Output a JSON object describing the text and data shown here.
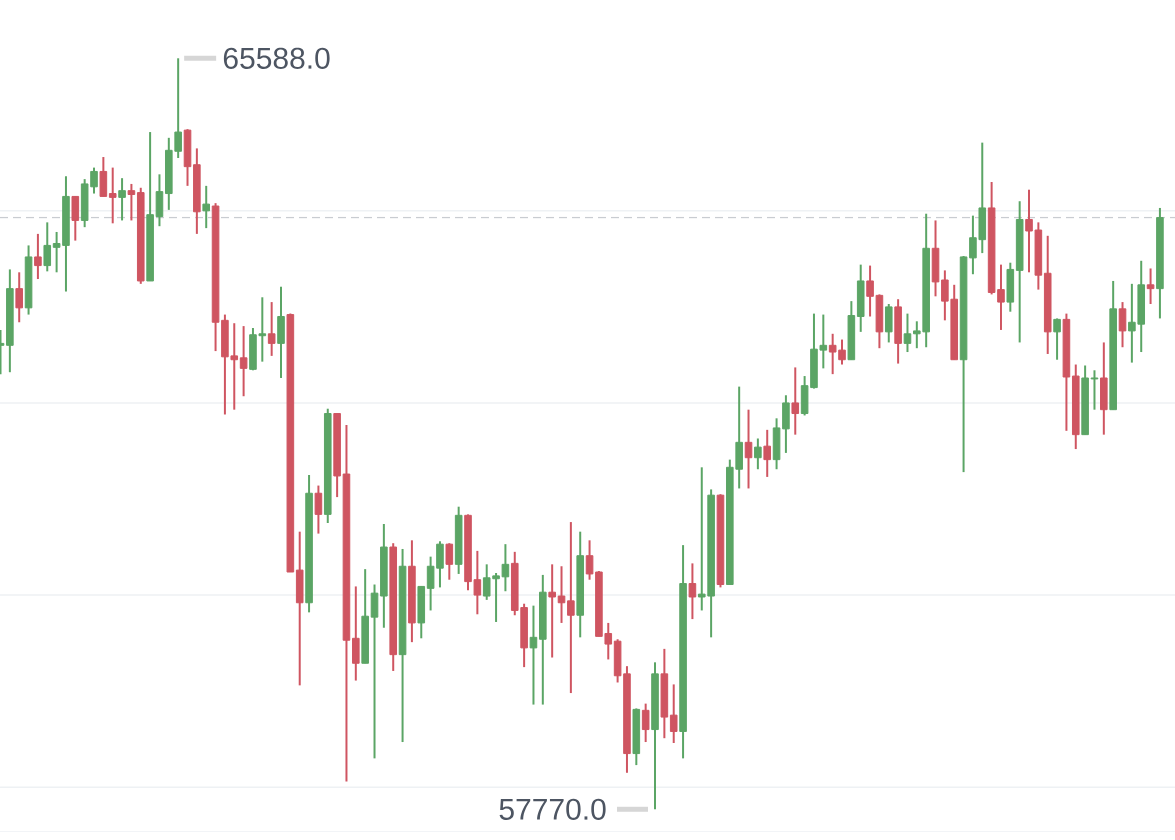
{
  "chart_data": {
    "type": "candlestick",
    "categories": [
      null,
      null,
      null,
      null,
      null,
      null,
      null,
      null,
      null,
      null,
      null,
      null,
      null,
      null,
      null,
      null,
      null,
      null,
      null,
      null,
      null,
      null,
      null,
      null,
      null,
      null,
      null,
      null,
      null,
      null,
      null,
      null,
      null,
      null,
      null,
      null,
      null,
      null,
      null,
      null,
      null,
      null,
      null,
      null,
      null,
      null,
      null,
      null,
      null,
      null,
      null,
      null,
      null,
      null,
      null,
      null,
      null,
      null,
      null,
      null,
      null,
      null,
      null,
      null,
      null,
      null,
      null,
      null,
      null,
      null,
      null,
      null,
      null,
      null,
      null,
      null,
      null,
      null,
      null,
      null,
      null,
      null,
      null,
      null,
      null,
      null,
      null,
      null,
      null,
      null,
      null,
      null,
      null,
      null,
      null,
      null,
      null,
      null,
      null,
      null,
      null,
      null,
      null,
      null,
      null,
      null,
      null,
      null,
      null,
      null,
      null,
      null,
      null,
      null,
      null,
      null,
      null,
      null,
      null,
      null,
      null,
      null,
      null,
      null,
      null
    ],
    "ohlc": [
      [
        62600,
        62760,
        62300,
        62620
      ],
      [
        62600,
        63390,
        62320,
        63190
      ],
      [
        63190,
        63360,
        62840,
        62990
      ],
      [
        62990,
        63640,
        62920,
        63520
      ],
      [
        63520,
        63760,
        63290,
        63430
      ],
      [
        63430,
        63880,
        63370,
        63640
      ],
      [
        63620,
        63780,
        63360,
        63660
      ],
      [
        63640,
        64360,
        63160,
        64150
      ],
      [
        64150,
        64150,
        63690,
        63900
      ],
      [
        63900,
        64330,
        63830,
        64280
      ],
      [
        64250,
        64450,
        64180,
        64410
      ],
      [
        64410,
        64560,
        64150,
        64150
      ],
      [
        64180,
        64450,
        63870,
        64140
      ],
      [
        64140,
        64340,
        63900,
        64210
      ],
      [
        64210,
        64280,
        63900,
        64170
      ],
      [
        64190,
        64240,
        63240,
        63270
      ],
      [
        63270,
        64820,
        63270,
        63960
      ],
      [
        63940,
        64380,
        63840,
        64200
      ],
      [
        64180,
        64760,
        64010,
        64630
      ],
      [
        64620,
        65588,
        64550,
        64820
      ],
      [
        64840,
        64850,
        64260,
        64460
      ],
      [
        64480,
        64650,
        63760,
        63990
      ],
      [
        64000,
        64260,
        63820,
        64070
      ],
      [
        64050,
        64080,
        62540,
        62840
      ],
      [
        62860,
        62920,
        61880,
        62480
      ],
      [
        62490,
        62830,
        61930,
        62450
      ],
      [
        62470,
        62800,
        62070,
        62360
      ],
      [
        62350,
        62780,
        62340,
        62710
      ],
      [
        62700,
        63100,
        62430,
        62720
      ],
      [
        62720,
        63050,
        62490,
        62620
      ],
      [
        62620,
        63210,
        62260,
        62900
      ],
      [
        62920,
        62930,
        60240,
        60240
      ],
      [
        60260,
        60660,
        59060,
        59920
      ],
      [
        59920,
        61250,
        59820,
        61060
      ],
      [
        61060,
        61140,
        60640,
        60840
      ],
      [
        60840,
        61940,
        60750,
        61890
      ],
      [
        61890,
        61890,
        61020,
        61240
      ],
      [
        61260,
        61770,
        58060,
        59530
      ],
      [
        59550,
        60090,
        59110,
        59290
      ],
      [
        59290,
        60270,
        59290,
        59780
      ],
      [
        59770,
        60110,
        58300,
        60020
      ],
      [
        59990,
        60740,
        59660,
        60500
      ],
      [
        60500,
        60540,
        59210,
        59380
      ],
      [
        59380,
        60480,
        58470,
        60300
      ],
      [
        60300,
        60570,
        59510,
        59710
      ],
      [
        59710,
        60090,
        59550,
        60090
      ],
      [
        60070,
        60400,
        59840,
        60300
      ],
      [
        60280,
        60560,
        60080,
        60530
      ],
      [
        60530,
        60540,
        60160,
        60320
      ],
      [
        60320,
        60920,
        60220,
        60830
      ],
      [
        60830,
        60840,
        60050,
        60140
      ],
      [
        60160,
        60460,
        59800,
        60000
      ],
      [
        59990,
        60320,
        59950,
        60180
      ],
      [
        60170,
        60230,
        59720,
        60200
      ],
      [
        60190,
        60530,
        60040,
        60320
      ],
      [
        60330,
        60450,
        59790,
        59840
      ],
      [
        59870,
        59910,
        59250,
        59450
      ],
      [
        59450,
        59890,
        58860,
        59560
      ],
      [
        59540,
        60210,
        58860,
        60030
      ],
      [
        60030,
        60320,
        59350,
        59980
      ],
      [
        59990,
        60300,
        59710,
        59920
      ],
      [
        59940,
        60760,
        58980,
        59790
      ],
      [
        59790,
        60660,
        59560,
        60410
      ],
      [
        60410,
        60570,
        60160,
        60220
      ],
      [
        60240,
        60250,
        59570,
        59570
      ],
      [
        59600,
        59710,
        59330,
        59490
      ],
      [
        59520,
        59540,
        59090,
        59160
      ],
      [
        59180,
        59260,
        58150,
        58350
      ],
      [
        58350,
        58820,
        58230,
        58810
      ],
      [
        58800,
        58870,
        58470,
        58600
      ],
      [
        58600,
        59300,
        57770,
        59180
      ],
      [
        59180,
        59440,
        58510,
        58730
      ],
      [
        58750,
        59070,
        58460,
        58580
      ],
      [
        58580,
        60520,
        58300,
        60120
      ],
      [
        60120,
        60330,
        59750,
        59980
      ],
      [
        59980,
        61330,
        59840,
        60010
      ],
      [
        59990,
        61100,
        59560,
        61040
      ],
      [
        61040,
        61050,
        60080,
        60110
      ],
      [
        60110,
        61410,
        60110,
        61330
      ],
      [
        61310,
        62170,
        61110,
        61590
      ],
      [
        61590,
        61930,
        61110,
        61430
      ],
      [
        61430,
        61630,
        61310,
        61540
      ],
      [
        61550,
        61720,
        61230,
        61410
      ],
      [
        61410,
        61840,
        61310,
        61740
      ],
      [
        61730,
        62080,
        61480,
        62000
      ],
      [
        62000,
        62370,
        61670,
        61890
      ],
      [
        61890,
        62280,
        61870,
        62180
      ],
      [
        62160,
        62930,
        62150,
        62560
      ],
      [
        62550,
        62920,
        62360,
        62600
      ],
      [
        62600,
        62720,
        62300,
        62530
      ],
      [
        62550,
        62660,
        62400,
        62450
      ],
      [
        62450,
        63060,
        62450,
        62910
      ],
      [
        62900,
        63440,
        62740,
        63270
      ],
      [
        63270,
        63430,
        62900,
        63110
      ],
      [
        63120,
        63130,
        62570,
        62740
      ],
      [
        62740,
        63030,
        62630,
        63000
      ],
      [
        63000,
        63080,
        62410,
        62620
      ],
      [
        62620,
        62930,
        62530,
        62720
      ],
      [
        62720,
        62850,
        62570,
        62750
      ],
      [
        62740,
        63970,
        62580,
        63610
      ],
      [
        63610,
        63900,
        63110,
        63260
      ],
      [
        63280,
        63380,
        62860,
        63060
      ],
      [
        63080,
        63230,
        62450,
        62450
      ],
      [
        62450,
        63530,
        61280,
        63520
      ],
      [
        63510,
        63950,
        63340,
        63720
      ],
      [
        63700,
        64710,
        63560,
        64030
      ],
      [
        64030,
        64300,
        63130,
        63150
      ],
      [
        63180,
        63440,
        62760,
        63050
      ],
      [
        63050,
        63460,
        62950,
        63390
      ],
      [
        63380,
        64100,
        62630,
        63910
      ],
      [
        63910,
        64220,
        63360,
        63790
      ],
      [
        63800,
        63880,
        63180,
        63330
      ],
      [
        63350,
        63740,
        62510,
        62740
      ],
      [
        62740,
        62880,
        62450,
        62870
      ],
      [
        62870,
        62930,
        61710,
        62270
      ],
      [
        62280,
        62400,
        61520,
        61670
      ],
      [
        61670,
        62390,
        61670,
        62260
      ],
      [
        62250,
        62340,
        61930,
        62260
      ],
      [
        62260,
        62630,
        61670,
        61930
      ],
      [
        61930,
        63270,
        61930,
        62980
      ],
      [
        62980,
        63050,
        62580,
        62750
      ],
      [
        62750,
        63240,
        62420,
        62840
      ],
      [
        62820,
        63480,
        62530,
        63230
      ],
      [
        63230,
        63400,
        63030,
        63190
      ],
      [
        63190,
        64030,
        62880,
        63930
      ]
    ],
    "colors": [
      "#5ba565",
      "#5ba565",
      "#cf5561",
      "#5ba565",
      "#cf5561",
      "#5ba565",
      "#5ba565",
      "#5ba565",
      "#cf5561",
      "#5ba565",
      "#5ba565",
      "#cf5561",
      "#cf5561",
      "#5ba565",
      "#cf5561",
      "#cf5561",
      "#5ba565",
      "#5ba565",
      "#5ba565",
      "#5ba565",
      "#cf5561",
      "#cf5561",
      "#5ba565",
      "#cf5561",
      "#cf5561",
      "#cf5561",
      "#cf5561",
      "#5ba565",
      "#5ba565",
      "#cf5561",
      "#5ba565",
      "#cf5561",
      "#cf5561",
      "#5ba565",
      "#cf5561",
      "#5ba565",
      "#cf5561",
      "#cf5561",
      "#cf5561",
      "#5ba565",
      "#5ba565",
      "#5ba565",
      "#cf5561",
      "#5ba565",
      "#cf5561",
      "#5ba565",
      "#5ba565",
      "#5ba565",
      "#cf5561",
      "#5ba565",
      "#cf5561",
      "#cf5561",
      "#5ba565",
      "#5ba565",
      "#5ba565",
      "#cf5561",
      "#cf5561",
      "#5ba565",
      "#5ba565",
      "#cf5561",
      "#cf5561",
      "#cf5561",
      "#5ba565",
      "#cf5561",
      "#cf5561",
      "#cf5561",
      "#cf5561",
      "#cf5561",
      "#5ba565",
      "#cf5561",
      "#5ba565",
      "#cf5561",
      "#cf5561",
      "#5ba565",
      "#cf5561",
      "#5ba565",
      "#5ba565",
      "#cf5561",
      "#5ba565",
      "#5ba565",
      "#cf5561",
      "#5ba565",
      "#cf5561",
      "#5ba565",
      "#5ba565",
      "#cf5561",
      "#5ba565",
      "#5ba565",
      "#5ba565",
      "#cf5561",
      "#cf5561",
      "#5ba565",
      "#5ba565",
      "#cf5561",
      "#cf5561",
      "#5ba565",
      "#cf5561",
      "#5ba565",
      "#5ba565",
      "#5ba565",
      "#cf5561",
      "#cf5561",
      "#cf5561",
      "#5ba565",
      "#5ba565",
      "#5ba565",
      "#cf5561",
      "#cf5561",
      "#5ba565",
      "#5ba565",
      "#cf5561",
      "#cf5561",
      "#cf5561",
      "#5ba565",
      "#cf5561",
      "#cf5561",
      "#5ba565",
      "#5ba565",
      "#cf5561",
      "#5ba565",
      "#cf5561",
      "#5ba565",
      "#5ba565",
      "#cf5561",
      "#5ba565"
    ],
    "yticks": [
      {
        "value": 58000,
        "label": null
      },
      {
        "value": 60000,
        "label": null
      },
      {
        "value": 62000,
        "label": null
      },
      {
        "value": 64000,
        "label": null
      }
    ],
    "grid": "y",
    "ref_lines": [
      {
        "axis": "y",
        "value": 63930,
        "color": "#c9ccd1",
        "line_style": "dashed"
      }
    ],
    "annotations": [
      "65588.0",
      "57770.0"
    ]
  }
}
